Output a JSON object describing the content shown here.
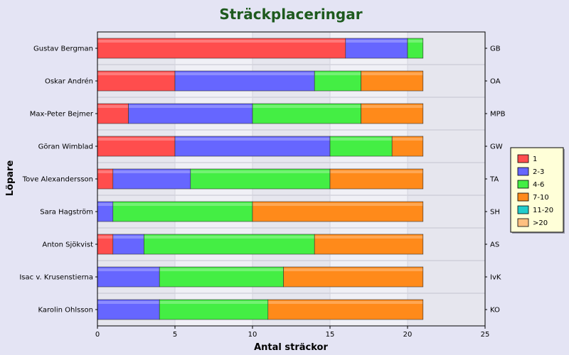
{
  "chart_data": {
    "type": "bar",
    "orientation": "horizontal",
    "stacked": true,
    "title": "Sträckplaceringar",
    "xlabel": "Antal sträckor",
    "ylabel": "Löpare",
    "xlim": [
      0,
      25
    ],
    "xticks": [
      0,
      5,
      10,
      15,
      20,
      25
    ],
    "grid": true,
    "legend_position": "right",
    "categories": [
      "Gustav Bergman",
      "Oskar Andrén",
      "Max-Peter Bejmer",
      "Göran Wimblad",
      "Tove Alexandersson",
      "Sara Hagström",
      "Anton Sjökvist",
      "Isac v. Krusenstierna",
      "Karolin Ohlsson"
    ],
    "right_labels": [
      "GB",
      "OA",
      "MPB",
      "GW",
      "TA",
      "SH",
      "AS",
      "IvK",
      "KO"
    ],
    "series": [
      {
        "name": "1",
        "color": "#ff4d4d",
        "values": [
          16,
          5,
          2,
          5,
          1,
          0,
          1,
          0,
          0
        ]
      },
      {
        "name": "2-3",
        "color": "#6666ff",
        "values": [
          4,
          9,
          8,
          10,
          5,
          1,
          2,
          4,
          4
        ]
      },
      {
        "name": "4-6",
        "color": "#44ee44",
        "values": [
          1,
          3,
          7,
          4,
          9,
          9,
          11,
          8,
          7
        ]
      },
      {
        "name": "7-10",
        "color": "#ff8a1a",
        "values": [
          0,
          4,
          4,
          2,
          6,
          11,
          7,
          9,
          10
        ]
      },
      {
        "name": "11-20",
        "color": "#22cccc",
        "values": [
          0,
          0,
          0,
          0,
          0,
          0,
          0,
          0,
          0
        ]
      },
      {
        "name": ">20",
        "color": "#ffc080",
        "values": [
          0,
          0,
          0,
          0,
          0,
          0,
          0,
          0,
          0
        ]
      }
    ]
  }
}
